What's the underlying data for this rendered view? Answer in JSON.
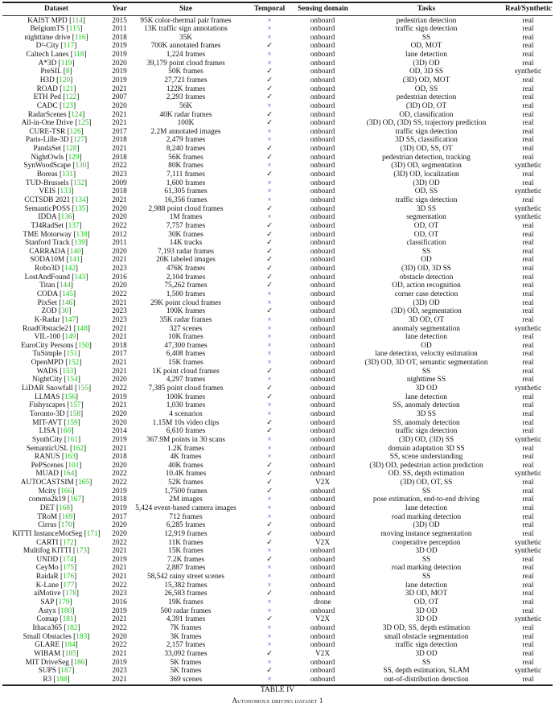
{
  "table": {
    "headers": [
      "Dataset",
      "Year",
      "Size",
      "Temporal",
      "Sensing domain",
      "Tasks",
      "Real/Synthetic"
    ],
    "colors": {
      "citation": "#1fbf1f",
      "cross": "#2a4fa8",
      "check": "#222222"
    },
    "rows": [
      [
        "KAIST MPD",
        "114",
        "2015",
        "95K color-thermal pair frames",
        "×",
        "onboard",
        "pedestrian detection",
        "real"
      ],
      [
        "BelgiumTS",
        "115",
        "2011",
        "13K traffic sign annotations",
        "×",
        "onboard",
        "traffic sign detection",
        "real"
      ],
      [
        "nighttime drive",
        "116",
        "2018",
        "35K",
        "×",
        "onboard",
        "SS",
        "real"
      ],
      [
        "D²-City",
        "117",
        "2019",
        "700K annotated frames",
        "✓",
        "onboard",
        "OD, MOT",
        "real"
      ],
      [
        "Caltech Lanes",
        "118",
        "2019",
        "1,224 frames",
        "×",
        "onboard",
        "lane detection",
        "real"
      ],
      [
        "A*3D",
        "119",
        "2020",
        "39,179 point cloud frames",
        "×",
        "onboard",
        "(3D) OD",
        "real"
      ],
      [
        "PreSIL",
        "8",
        "2019",
        "50K frames",
        "✓",
        "onboard",
        "OD, 3D SS",
        "synthetic"
      ],
      [
        "H3D",
        "120",
        "2019",
        "27,721 frames",
        "✓",
        "onboard",
        "(3D) OD, MOT",
        "real"
      ],
      [
        "ROAD",
        "121",
        "2021",
        "122K frames",
        "✓",
        "onboard",
        "OD, SS",
        "real"
      ],
      [
        "ETH Ped",
        "122",
        "2007",
        "2,293 frames",
        "✓",
        "onboard",
        "pedestrian detection",
        "real"
      ],
      [
        "CADC",
        "123",
        "2020",
        "56K",
        "×",
        "onboard",
        "(3D) OD, OT",
        "real"
      ],
      [
        "RadarScenes",
        "124",
        "2021",
        "40K radar frames",
        "✓",
        "onboard",
        "OD, classification",
        "real"
      ],
      [
        "All-in-One Drive",
        "125",
        "2021",
        "100K",
        "✓",
        "onboard",
        "(3D) OD, (3D) SS, trajectory prediction",
        "real"
      ],
      [
        "CURE-TSR",
        "126",
        "2017",
        "2.2M annotated images",
        "×",
        "onboard",
        "traffic sign detection",
        "real"
      ],
      [
        "Paris-Lille-3D",
        "127",
        "2018",
        "2,479 frames",
        "×",
        "onboard",
        "3D SS, classification",
        "real"
      ],
      [
        "PandaSet",
        "128",
        "2021",
        "8,240 frames",
        "✓",
        "onboard",
        "(3D) OD, SS, OT",
        "real"
      ],
      [
        "NightOwls",
        "129",
        "2018",
        "56K frames",
        "✓",
        "onboard",
        "pedestrian detection, tracking",
        "real"
      ],
      [
        "SynWoodScape",
        "130",
        "2022",
        "80K frames",
        "×",
        "onboard",
        "(3D) OD, segmentation",
        "synthetic"
      ],
      [
        "Boreas",
        "131",
        "2023",
        "7,111 frames",
        "✓",
        "onboard",
        "(3D) OD, localization",
        "real"
      ],
      [
        "TUD-Brussels",
        "132",
        "2009",
        "1,600 frames",
        "×",
        "onboard",
        "(3D) OD",
        "real"
      ],
      [
        "VEIS",
        "133",
        "2018",
        "61,305 frames",
        "×",
        "onboard",
        "OD, SS",
        "synthetic"
      ],
      [
        "CCTSDB 2021",
        "134",
        "2021",
        "16,356 frames",
        "×",
        "onboard",
        "traffic sign detection",
        "real"
      ],
      [
        "SemanticPOSS",
        "135",
        "2020",
        "2,988 point cloud frames",
        "✓",
        "onboard",
        "3D SS",
        "synthetic"
      ],
      [
        "IDDA",
        "136",
        "2020",
        "1M frames",
        "×",
        "onboard",
        "segmentation",
        "synthetic"
      ],
      [
        "TJ4RadSet",
        "137",
        "2022",
        "7,757 frames",
        "✓",
        "onboard",
        "OD, OT",
        "real"
      ],
      [
        "TME Motorway",
        "138",
        "2012",
        "30K frames",
        "✓",
        "onboard",
        "OD, OT",
        "real"
      ],
      [
        "Stanford Track",
        "139",
        "2011",
        "14K tracks",
        "✓",
        "onboard",
        "classification",
        "real"
      ],
      [
        "CARRADA",
        "140",
        "2020",
        "7,193 radar frames",
        "✓",
        "onboard",
        "SS",
        "real"
      ],
      [
        "SODA10M",
        "141",
        "2021",
        "20K labeled images",
        "✓",
        "onboard",
        "OD",
        "real"
      ],
      [
        "Robo3D",
        "142",
        "2023",
        "476K frames",
        "✓",
        "onboard",
        "(3D) OD, 3D SS",
        "real"
      ],
      [
        "LostAndFound",
        "143",
        "2016",
        "2,104 frames",
        "✓",
        "onboard",
        "obstacle detection",
        "real"
      ],
      [
        "Titan",
        "144",
        "2020",
        "75,262 frames",
        "✓",
        "onboard",
        "OD, action recognition",
        "real"
      ],
      [
        "CODA",
        "145",
        "2022",
        "1,500 frames",
        "×",
        "onboard",
        "corner case detection",
        "real"
      ],
      [
        "PixSet",
        "146",
        "2021",
        "29K point cloud frames",
        "×",
        "onboard",
        "(3D) OD",
        "real"
      ],
      [
        "ZOD",
        "30",
        "2023",
        "100K frames",
        "✓",
        "onboard",
        "(3D) OD, segmentation",
        "real"
      ],
      [
        "K-Radar",
        "147",
        "2023",
        "35K radar frames",
        "×",
        "onboard",
        "3D OD, OT",
        "real"
      ],
      [
        "RoadObstacle21",
        "148",
        "2021",
        "327 scenes",
        "×",
        "onboard",
        "anomaly segmentation",
        "synthetic"
      ],
      [
        "VIL-100",
        "149",
        "2021",
        "10K frames",
        "×",
        "onboard",
        "lane detection",
        "real"
      ],
      [
        "EuroCity Persons",
        "150",
        "2018",
        "47,300 frames",
        "×",
        "onboard",
        "OD",
        "real"
      ],
      [
        "TuSimple",
        "151",
        "2017",
        "6,408 frames",
        "×",
        "onboard",
        "lane detection, velocity estimation",
        "real"
      ],
      [
        "OpenMPD",
        "152",
        "2021",
        "15K frames",
        "×",
        "onboard",
        "(3D) OD, 3D OT, semantic segmentation",
        "real"
      ],
      [
        "WADS",
        "153",
        "2021",
        "1K point cloud frames",
        "✓",
        "onboard",
        "SS",
        "real"
      ],
      [
        "NightCity",
        "154",
        "2020",
        "4,297 frames",
        "×",
        "onboard",
        "nighttime SS",
        "real"
      ],
      [
        "LiDAR Snowfall",
        "155",
        "2022",
        "7,385 point cloud frames",
        "✓",
        "onboard",
        "3D OD",
        "synthetic"
      ],
      [
        "LLMAS",
        "156",
        "2019",
        "100K frames",
        "✓",
        "onboard",
        "lane detection",
        "real"
      ],
      [
        "Fishyscapes",
        "157",
        "2021",
        "1,030 frames",
        "×",
        "onboard",
        "SS, anomaly detection",
        "real"
      ],
      [
        "Toronto-3D",
        "158",
        "2020",
        "4 scenarios",
        "×",
        "onboard",
        "3D SS",
        "real"
      ],
      [
        "MIT-AVT",
        "159",
        "2020",
        "1.15M 10s video clips",
        "✓",
        "onboard",
        "SS, anomaly detection",
        "real"
      ],
      [
        "LISA",
        "160",
        "2014",
        "6,610 frames",
        "✓",
        "onboard",
        "traffic sign detection",
        "real"
      ],
      [
        "SynthCity",
        "161",
        "2019",
        "367.9M points in 30 scans",
        "×",
        "onboard",
        "(3D) OD, (3D) SS",
        "synthetic"
      ],
      [
        "SemanticUSL",
        "162",
        "2021",
        "1.2K frames",
        "×",
        "onboard",
        "domain adaptation 3D SS",
        "real"
      ],
      [
        "RANUS",
        "163",
        "2018",
        "4K frames",
        "×",
        "onboard",
        "SS, scene understanding",
        "real"
      ],
      [
        "PePScenes",
        "101",
        "2020",
        "40K frames",
        "✓",
        "onboard",
        "(3D) OD, pedestrian action prediction",
        "real"
      ],
      [
        "MUAD",
        "164",
        "2022",
        "10.4K frames",
        "✓",
        "onboard",
        "OD. SS, depth estimation",
        "synthetic"
      ],
      [
        "AUTOCASTSIM",
        "165",
        "2022",
        "52K frames",
        "✓",
        "V2X",
        "(3D) OD, OT, SS",
        "real"
      ],
      [
        "Mcity",
        "166",
        "2019",
        "1,7500 frames",
        "✓",
        "onboard",
        "SS",
        "real"
      ],
      [
        "comma2k19",
        "167",
        "2018",
        "2M images",
        "×",
        "onboard",
        "pose estimation, end-to-end driving",
        "real"
      ],
      [
        "DET",
        "168",
        "2019",
        "5,424 event-based camera images",
        "×",
        "onboard",
        "lane detection",
        "real"
      ],
      [
        "TRoM",
        "169",
        "2017",
        "712 frames",
        "×",
        "onboard",
        "road marking detection",
        "real"
      ],
      [
        "Cirrus",
        "170",
        "2020",
        "6,285 frames",
        "✓",
        "onboard",
        "(3D) OD",
        "real"
      ],
      [
        "KITTI InstanceMotSeg",
        "171",
        "2020",
        "12,919 frames",
        "✓",
        "onboard",
        "moving instance segmentation",
        "real"
      ],
      [
        "CARTI",
        "172",
        "2022",
        "11K frames",
        "✓",
        "V2X",
        "cooperative perception",
        "synthetic"
      ],
      [
        "Multifog KITTI",
        "173",
        "2021",
        "15K frames",
        "×",
        "onboard",
        "3D OD",
        "synthetic"
      ],
      [
        "UNDD",
        "174",
        "2019",
        "7.2K frames",
        "✓",
        "onboard",
        "SS",
        "real"
      ],
      [
        "CeyMo",
        "175",
        "2021",
        "2,887 frames",
        "×",
        "onboard",
        "road marking detection",
        "real"
      ],
      [
        "RaidaR",
        "176",
        "2021",
        "58,542 rainy street scenes",
        "×",
        "onboard",
        "SS",
        "real"
      ],
      [
        "K-Lane",
        "177",
        "2022",
        "15,382 frames",
        "×",
        "onboard",
        "lane detection",
        "real"
      ],
      [
        "aiMotive",
        "178",
        "2023",
        "26,583 frames",
        "✓",
        "onboard",
        "3D OD, MOT",
        "real"
      ],
      [
        "SAP",
        "179",
        "2016",
        "19K frames",
        "×",
        "drone",
        "OD, OT",
        "real"
      ],
      [
        "Astyx",
        "180",
        "2019",
        "500 radar frames",
        "×",
        "onboard",
        "3D OD",
        "real"
      ],
      [
        "Comap",
        "181",
        "2021",
        "4,391 frames",
        "✓",
        "V2X",
        "3D OD",
        "synthetic"
      ],
      [
        "Ithaca365",
        "182",
        "2022",
        "7K frames",
        "×",
        "onboard",
        "3D OD, SS, depth estimation",
        "real"
      ],
      [
        "Small Obstacles",
        "183",
        "2020",
        "3K frames",
        "×",
        "onboard",
        "small obstacle segmentation",
        "real"
      ],
      [
        "GLARE",
        "184",
        "2022",
        "2,157 frames",
        "×",
        "onboard",
        "traffic sign detection",
        "real"
      ],
      [
        "WIBAM",
        "185",
        "2021",
        "33,092 frames",
        "✓",
        "V2X",
        "3D OD",
        "real"
      ],
      [
        "MIT DriveSeg",
        "186",
        "2019",
        "5K frames",
        "×",
        "onboard",
        "SS",
        "real"
      ],
      [
        "SUPS",
        "187",
        "2023",
        "5K frames",
        "✓",
        "onboard",
        "SS, depth estimation, SLAM",
        "synthetic"
      ],
      [
        "R3",
        "188",
        "2021",
        "369 scenes",
        "×",
        "onboard",
        "out-of-distribution detection",
        "real"
      ]
    ]
  },
  "caption": {
    "label": "TABLE IV",
    "title": "Autonomous driving dataset 1"
  }
}
